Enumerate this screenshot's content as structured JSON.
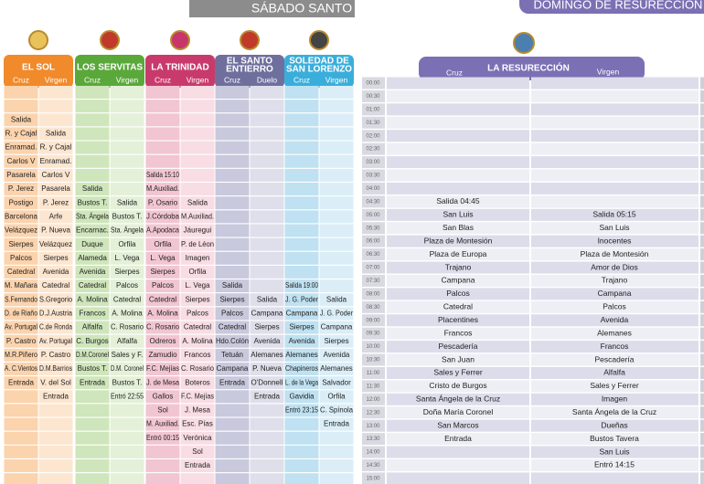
{
  "header": {
    "saturday": "SÁBADO SANTO",
    "sunday": "DOMINGO DE RESURECCIÓN"
  },
  "saturday": {
    "brotherhoods": [
      {
        "name": [
          "EL SOL"
        ],
        "columns": [
          "Cruz",
          "Virgen"
        ]
      },
      {
        "name": [
          "LOS SERVITAS"
        ],
        "columns": [
          "Cruz",
          "Virgen"
        ]
      },
      {
        "name": [
          "LA TRINIDAD"
        ],
        "columns": [
          "Cruz",
          "Virgen"
        ]
      },
      {
        "name": [
          "EL SANTO",
          "ENTIERRO"
        ],
        "columns": [
          "Cruz",
          "Duelo"
        ]
      },
      {
        "name": [
          "SOLEDAD DE",
          "SAN LORENZO"
        ],
        "columns": [
          "Cruz",
          "Virgen"
        ]
      }
    ],
    "rows": [
      [
        null,
        null,
        null,
        null,
        null,
        null,
        null,
        null,
        null,
        null
      ],
      [
        null,
        null,
        null,
        null,
        null,
        null,
        null,
        null,
        null,
        null
      ],
      [
        "Salida",
        null,
        null,
        null,
        null,
        null,
        null,
        null,
        null,
        null
      ],
      [
        "R. y Cajal",
        "Salida",
        null,
        null,
        null,
        null,
        null,
        null,
        null,
        null
      ],
      [
        "Enramad.",
        "R. y Cajal",
        null,
        null,
        null,
        null,
        null,
        null,
        null,
        null
      ],
      [
        "Carlos V",
        "Enramad.",
        null,
        null,
        null,
        null,
        null,
        null,
        null,
        null
      ],
      [
        "Pasarela",
        "Carlos V",
        null,
        null,
        "Salida 15:10",
        null,
        null,
        null,
        null,
        null
      ],
      [
        "P. Jerez",
        "Pasarela",
        "Salida",
        null,
        "M.Auxiliad.",
        null,
        null,
        null,
        null,
        null
      ],
      [
        "Postigo",
        "P. Jerez",
        "Bustos T.",
        "Salida",
        "P. Osario",
        "Salida",
        null,
        null,
        null,
        null
      ],
      [
        "Barcelona",
        "Arfe",
        "Sta. Ángela",
        "Bustos T.",
        "J.Córdoba",
        "M.Auxiliad.",
        null,
        null,
        null,
        null
      ],
      [
        "Velázquez",
        "P. Nueva",
        "Encarnac.",
        "Sta. Ángela",
        "A.Apodaca",
        "Jáuregui",
        null,
        null,
        null,
        null
      ],
      [
        "Sierpes",
        "Velázquez",
        "Duque",
        "Orfila",
        "Orfila",
        "P. de Léon",
        null,
        null,
        null,
        null
      ],
      [
        "Palcos",
        "Sierpes",
        "Alameda",
        "L. Vega",
        "L. Vega",
        "Imagen",
        null,
        null,
        null,
        null
      ],
      [
        "Catedral",
        "Avenida",
        "Avenida",
        "Sierpes",
        "Sierpes",
        "Orfila",
        null,
        null,
        null,
        null
      ],
      [
        "M. Mañara",
        "Catedral",
        "Catedral",
        "Palcos",
        "Palcos",
        "L. Vega",
        "Salida",
        null,
        "Salida 19:00",
        null
      ],
      [
        "S.Fernando",
        "S.Gregorio",
        "A. Molina",
        "Catedral",
        "Catedral",
        "Sierpes",
        "Sierpes",
        "Salida",
        "J. G. Poder",
        "Salida"
      ],
      [
        "D. de Riaño",
        "D.J.Austria",
        "Francos",
        "A. Molina",
        "A. Molina",
        "Palcos",
        "Palcos",
        "Campana",
        "Campana",
        "J. G. Poder"
      ],
      [
        "Av. Portugal",
        "C.de Ronda",
        "Alfalfa",
        "C. Rosario",
        "C. Rosario",
        "Catedral",
        "Catedral",
        "Sierpes",
        "Sierpes",
        "Campana"
      ],
      [
        "P. Castro",
        "Av. Portugal",
        "C. Burgos",
        "Alfalfa",
        "Odreros",
        "A. Molina",
        "Hdo.Colón",
        "Avenida",
        "Avenida",
        "Sierpes"
      ],
      [
        "M.R.Piñero",
        "P. Castro",
        "D.M.Coronel",
        "Sales y F.",
        "Zamudio",
        "Francos",
        "Tetuán",
        "Alemanes",
        "Alemanes",
        "Avenida"
      ],
      [
        "A. C.Vientos",
        "D.M.Barrios",
        "Bustos T.",
        "D.M. Coronel",
        "F.C. Mejías",
        "C. Rosario",
        "Campana",
        "P. Nueva",
        "Chapineros",
        "Alemanes"
      ],
      [
        "Entrada",
        "V. del Sol",
        "Entrada",
        "Bustos T.",
        "J. de Mesa",
        "Boteros",
        "Entrada",
        "O'Donnell",
        "L. de la Vega",
        "Salvador"
      ],
      [
        null,
        "Entrada",
        null,
        "Entró 22:55",
        "Gallos",
        "F.C. Mejías",
        null,
        "Entrada",
        "Gavidia",
        "Orfila"
      ],
      [
        null,
        null,
        null,
        null,
        "Sol",
        "J. Mesa",
        null,
        null,
        "Entró 23:15",
        "C. Spínola"
      ],
      [
        null,
        null,
        null,
        null,
        "M. Auxiliad.",
        "Esc. Pías",
        null,
        null,
        null,
        "Entrada"
      ],
      [
        null,
        null,
        null,
        null,
        "Entró 00:15",
        "Verónica",
        null,
        null,
        null,
        null
      ],
      [
        null,
        null,
        null,
        null,
        null,
        "Sol",
        null,
        null,
        null,
        null
      ],
      [
        null,
        null,
        null,
        null,
        null,
        "Entrada",
        null,
        null,
        null,
        null
      ],
      [
        null,
        null,
        null,
        null,
        null,
        null,
        null,
        null,
        null,
        null
      ]
    ]
  },
  "sunday": {
    "brotherhood": "LA RESURECCIÓN",
    "columns": [
      "Cruz",
      "Virgen"
    ],
    "rows": [
      {
        "time": "00:00",
        "cruz": null,
        "virgen": null
      },
      {
        "time": "00:30",
        "cruz": null,
        "virgen": null
      },
      {
        "time": "01:00",
        "cruz": null,
        "virgen": null
      },
      {
        "time": "01:30",
        "cruz": null,
        "virgen": null
      },
      {
        "time": "02:00",
        "cruz": null,
        "virgen": null
      },
      {
        "time": "02:30",
        "cruz": null,
        "virgen": null
      },
      {
        "time": "03:00",
        "cruz": null,
        "virgen": null
      },
      {
        "time": "03:30",
        "cruz": null,
        "virgen": null
      },
      {
        "time": "04:00",
        "cruz": null,
        "virgen": null
      },
      {
        "time": "04:30",
        "cruz": "Salida 04:45",
        "virgen": null
      },
      {
        "time": "05:00",
        "cruz": "San Luis",
        "virgen": "Salida 05:15"
      },
      {
        "time": "05:30",
        "cruz": "San Blas",
        "virgen": "San Luis"
      },
      {
        "time": "06:00",
        "cruz": "Plaza de Montesión",
        "virgen": "Inocentes"
      },
      {
        "time": "06:30",
        "cruz": "Plaza de Europa",
        "virgen": "Plaza de Montesión"
      },
      {
        "time": "07:00",
        "cruz": "Trajano",
        "virgen": "Amor de Dios"
      },
      {
        "time": "07:30",
        "cruz": "Campana",
        "virgen": "Trajano"
      },
      {
        "time": "08:00",
        "cruz": "Palcos",
        "virgen": "Campana"
      },
      {
        "time": "08:30",
        "cruz": "Catedral",
        "virgen": "Palcos"
      },
      {
        "time": "09:00",
        "cruz": "Placentines",
        "virgen": "Avenida"
      },
      {
        "time": "09:30",
        "cruz": "Francos",
        "virgen": "Alemanes"
      },
      {
        "time": "10:00",
        "cruz": "Pescadería",
        "virgen": "Francos"
      },
      {
        "time": "10:30",
        "cruz": "San Juan",
        "virgen": "Pescadería"
      },
      {
        "time": "11:00",
        "cruz": "Sales y Ferrer",
        "virgen": "Alfalfa"
      },
      {
        "time": "11:30",
        "cruz": "Cristo de Burgos",
        "virgen": "Sales y Ferrer"
      },
      {
        "time": "12:00",
        "cruz": "Santa Ángela de la Cruz",
        "virgen": "Imagen"
      },
      {
        "time": "12:30",
        "cruz": "Doña María Coronel",
        "virgen": "Santa Ángela de la Cruz"
      },
      {
        "time": "13:00",
        "cruz": "San Marcos",
        "virgen": "Dueñas"
      },
      {
        "time": "13:30",
        "cruz": "Entrada",
        "virgen": "Bustos Tavera"
      },
      {
        "time": "14:00",
        "cruz": null,
        "virgen": "San Luis"
      },
      {
        "time": "14:30",
        "cruz": null,
        "virgen": "Entró 14:15"
      },
      {
        "time": "15:00",
        "cruz": null,
        "virgen": null
      }
    ]
  }
}
